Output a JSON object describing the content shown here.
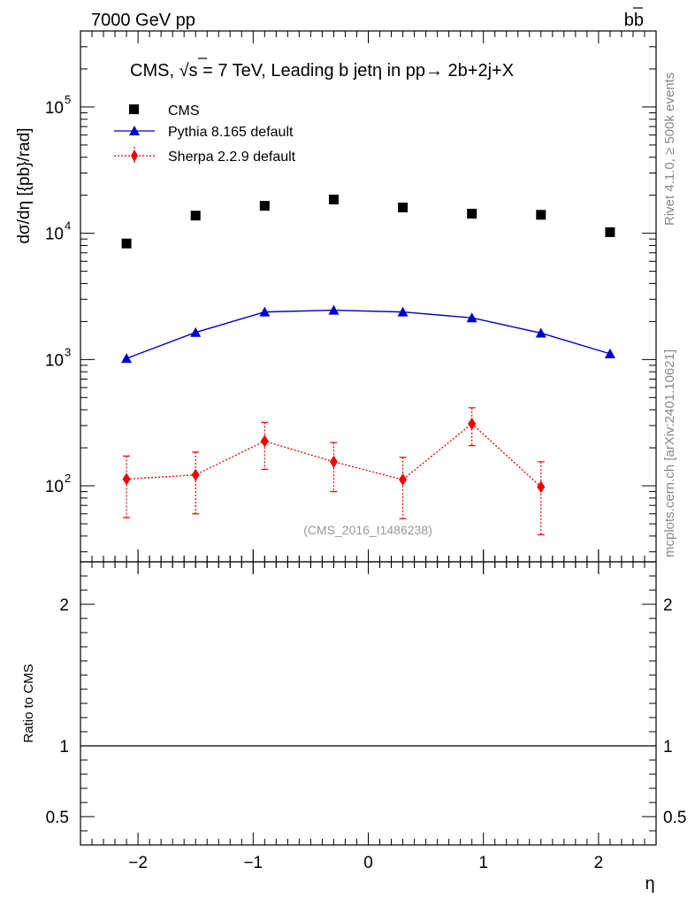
{
  "header": {
    "energy_label": "7000 GeV pp",
    "process_label": "b",
    "process_label_bar": "b"
  },
  "side_labels": {
    "rivet": "Rivet 4.1.0, ≥ 500k events",
    "mcplots": "mcplots.cern.ch [arXiv:2401.10621]"
  },
  "colors": {
    "cms": "#000000",
    "pythia": "#0000cc",
    "sherpa": "#ee0000",
    "watermark": "#999999"
  },
  "chart_data": [
    {
      "type": "scatter",
      "panel": "main",
      "title_pre": "CMS, ",
      "title_sqrt": "√",
      "title_s": "s",
      "title_post": " = 7 TeV, Leading b jetη in pp→  2b+2j+X",
      "ylabel": "dσ/dη [{pb}/rad]",
      "yscale": "log",
      "ylim": [
        25,
        400000
      ],
      "xlim": [
        -2.5,
        2.5
      ],
      "ytick_labels": [
        {
          "base": "10",
          "exp": "2",
          "value": 100
        },
        {
          "base": "10",
          "exp": "3",
          "value": 1000
        },
        {
          "base": "10",
          "exp": "4",
          "value": 10000
        },
        {
          "base": "10",
          "exp": "5",
          "value": 100000
        }
      ],
      "watermark": "(CMS_2016_I1486238)",
      "legend_position": "top-left",
      "series": [
        {
          "name": "CMS",
          "marker": "square",
          "x": [
            -2.1,
            -1.5,
            -0.9,
            -0.3,
            0.3,
            0.9,
            1.5,
            2.1
          ],
          "y": [
            8300,
            13800,
            16500,
            18500,
            16000,
            14300,
            14000,
            10200
          ]
        },
        {
          "name": "Pythia 8.165 default",
          "marker": "triangle",
          "line": "solid",
          "x": [
            -2.1,
            -1.5,
            -0.9,
            -0.3,
            0.3,
            0.9,
            1.5,
            2.1
          ],
          "y": [
            1020,
            1640,
            2380,
            2460,
            2380,
            2140,
            1620,
            1110
          ]
        },
        {
          "name": "Sherpa 2.2.9 default",
          "marker": "diamond",
          "line": "dotted",
          "x": [
            -2.1,
            -1.5,
            -0.9,
            -0.3,
            0.3,
            0.9,
            1.5
          ],
          "y": [
            113,
            122,
            226,
            155,
            112,
            310,
            98
          ],
          "err_up": [
            172,
            185,
            318,
            220,
            168,
            415,
            155
          ],
          "err_down": [
            56,
            60,
            135,
            90,
            55,
            208,
            41
          ]
        }
      ]
    },
    {
      "type": "line",
      "panel": "ratio",
      "xlabel": "η",
      "ylabel": "Ratio to CMS",
      "xlim": [
        -2.5,
        2.5
      ],
      "ylim": [
        0.3,
        2.3
      ],
      "xtick_labels": [
        "−2",
        "−1",
        "0",
        "1",
        "2"
      ],
      "xtick_values": [
        -2,
        -1,
        0,
        1,
        2
      ],
      "ytick_labels": [
        "0.5",
        "1",
        "2"
      ],
      "ytick_values": [
        0.5,
        1,
        2
      ],
      "reference_value": 1
    }
  ]
}
